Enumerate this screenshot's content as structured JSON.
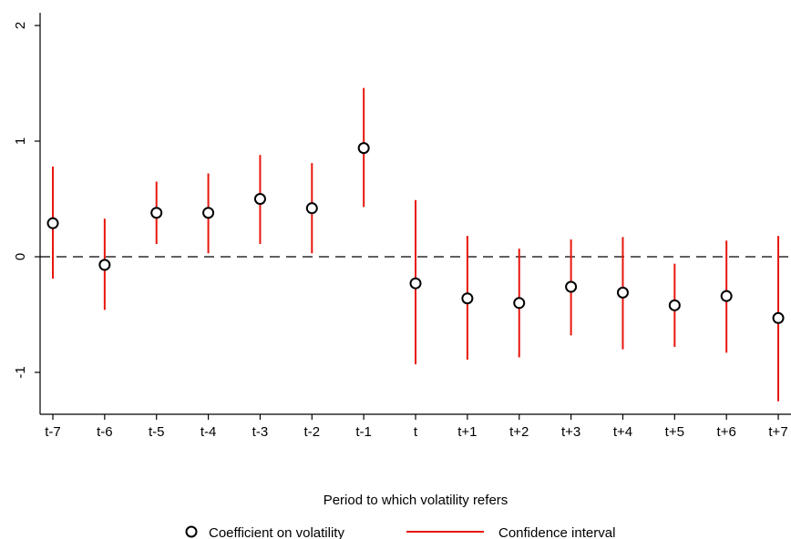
{
  "chart_data": {
    "type": "scatter",
    "xlabel": "Period to which volatility refers",
    "ylabel": "",
    "categories": [
      "t-7",
      "t-6",
      "t-5",
      "t-4",
      "t-3",
      "t-2",
      "t-1",
      "t",
      "t+1",
      "t+2",
      "t+3",
      "t+4",
      "t+5",
      "t+6",
      "t+7"
    ],
    "ylim": [
      -1.35,
      2.1
    ],
    "yticks": [
      -1,
      0,
      1,
      2
    ],
    "reference_line": 0,
    "grid": false,
    "legend_position": "bottom",
    "series": [
      {
        "name": "Coefficient on volatility",
        "values": [
          0.29,
          -0.07,
          0.38,
          0.38,
          0.5,
          0.42,
          0.94,
          -0.23,
          -0.36,
          -0.4,
          -0.26,
          -0.31,
          -0.42,
          -0.34,
          -0.53
        ]
      },
      {
        "name": "Confidence interval",
        "lower": [
          -0.19,
          -0.46,
          0.11,
          0.03,
          0.11,
          0.03,
          0.43,
          -0.93,
          -0.89,
          -0.87,
          -0.68,
          -0.8,
          -0.78,
          -0.83,
          -1.25
        ],
        "upper": [
          0.78,
          0.33,
          0.65,
          0.72,
          0.88,
          0.81,
          1.46,
          0.49,
          0.18,
          0.07,
          0.15,
          0.17,
          -0.06,
          0.14,
          0.18
        ]
      }
    ],
    "colors": {
      "marker": "#000000",
      "interval": "#e8160c",
      "axis": "#000000"
    }
  }
}
